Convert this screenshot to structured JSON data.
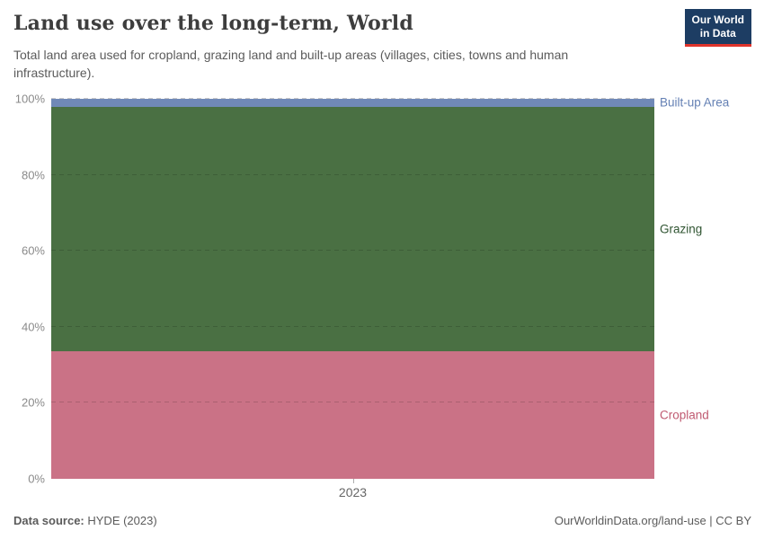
{
  "header": {
    "title": "Land use over the long-term, World",
    "subtitle": "Total land area used for cropland, grazing land and built-up areas (villages, cities, towns and human infrastructure).",
    "logo": {
      "line1": "Our World",
      "line2": "in Data"
    }
  },
  "chart_data": {
    "type": "area",
    "stacked": true,
    "relative": true,
    "title": "Land use over the long-term, World",
    "x": [
      2023
    ],
    "x_ticks": [
      "2023"
    ],
    "y_ticks": [
      "0%",
      "20%",
      "40%",
      "60%",
      "80%",
      "100%"
    ],
    "ylim": [
      0,
      100
    ],
    "unit": "%",
    "grid": true,
    "layout": {
      "series_bottom_to_top": true,
      "labels_position": "right"
    },
    "series": [
      {
        "name": "Cropland",
        "values": [
          33.6
        ],
        "color": "#CA7286",
        "label_color": "#C05A71"
      },
      {
        "name": "Grazing",
        "values": [
          64.3
        ],
        "color": "#4A7043",
        "label_color": "#2F5431"
      },
      {
        "name": "Built-up Area",
        "values": [
          2.1
        ],
        "color": "#7089B7",
        "label_color": "#6480B4"
      }
    ]
  },
  "colors": {
    "logo_background": "#1d3d63",
    "logo_underline": "#e0342b",
    "title_text": "#3d3d3d",
    "subtitle_text": "#5b5b5b",
    "axis_tick_text": "#8a8a8a"
  },
  "footer": {
    "source_label": "Data source:",
    "source_value": "HYDE (2023)",
    "credit": "OurWorldinData.org/land-use | CC BY"
  }
}
